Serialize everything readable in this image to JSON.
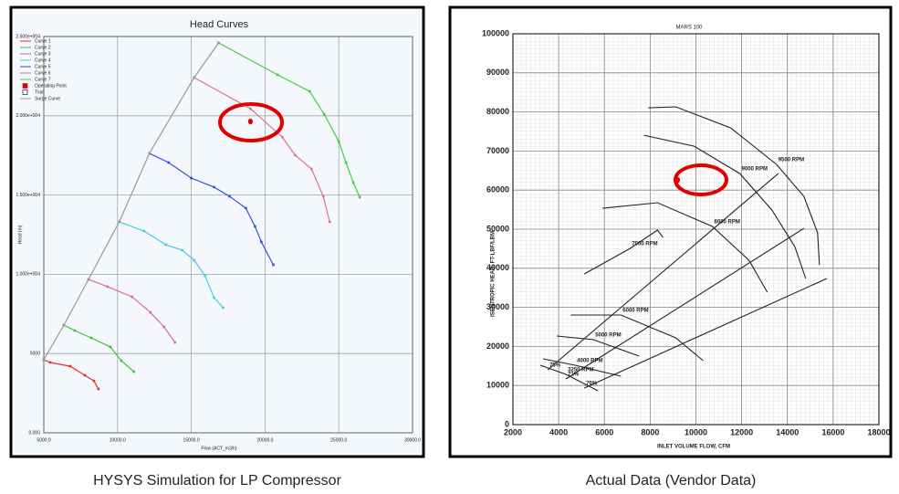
{
  "chart_data": [
    {
      "type": "line",
      "title": "Head Curves",
      "xlabel": "Flow (ACT_m3/h)",
      "ylabel": "Head (m)",
      "xlim": [
        5000,
        30000
      ],
      "ylim": [
        0,
        25000
      ],
      "grid": true,
      "markers": true,
      "legend": "top-left",
      "xticks": [
        {
          "value": 5000,
          "label": "5000.0"
        },
        {
          "value": 10000,
          "label": "10000.0"
        },
        {
          "value": 15000,
          "label": "15000.0"
        },
        {
          "value": 20000,
          "label": "20000.0"
        },
        {
          "value": 25000,
          "label": "25000.0"
        },
        {
          "value": 30000,
          "label": "30000.0"
        }
      ],
      "yticks": [
        {
          "value": 0,
          "label": "0.000"
        },
        {
          "value": 5000,
          "label": "5000"
        },
        {
          "value": 10000,
          "label": "1.000e+004"
        },
        {
          "value": 15000,
          "label": "1.500e+004"
        },
        {
          "value": 20000,
          "label": "2.000e+004"
        },
        {
          "value": 25000,
          "label": "2.500e+004"
        }
      ],
      "series": [
        {
          "name": "Curve 1",
          "color": "#e03030",
          "x": [
            5000,
            5430,
            6790,
            7780,
            8400,
            8700
          ],
          "values": [
            4610,
            4440,
            4200,
            3630,
            3280,
            2770
          ]
        },
        {
          "name": "Curve 2",
          "color": "#40c040",
          "x": [
            6360,
            7100,
            8210,
            9510,
            10250,
            11110
          ],
          "values": [
            6800,
            6450,
            5990,
            5420,
            4550,
            3860
          ]
        },
        {
          "name": "Curve 3",
          "color": "#e060b0",
          "x": [
            8030,
            9320,
            10990,
            12220,
            13150,
            13890
          ],
          "values": [
            9680,
            9220,
            8580,
            7600,
            6680,
            5700
          ]
        },
        {
          "name": "Curve 4",
          "color": "#40d0e0",
          "x": [
            10120,
            11790,
            13270,
            14380,
            15190,
            15930,
            16540,
            17160
          ],
          "values": [
            13310,
            12730,
            11870,
            11520,
            10890,
            9910,
            8530,
            7890
          ]
        },
        {
          "name": "Curve 5",
          "color": "#3050d0",
          "x": [
            12160,
            13460,
            15000,
            16540,
            17590,
            18700,
            19320,
            19750,
            20560
          ],
          "values": [
            17630,
            17050,
            16070,
            15500,
            14920,
            14170,
            13020,
            12040,
            10600
          ]
        },
        {
          "name": "Curve 6",
          "color": "#e07090",
          "x": [
            15190,
            19010,
            21170,
            22040,
            23150,
            23950,
            24380
          ],
          "values": [
            22410,
            20450,
            18660,
            17510,
            16650,
            14920,
            13310
          ]
        },
        {
          "name": "Curve 7",
          "color": "#40d040",
          "x": [
            16850,
            20860,
            23020,
            24010,
            25000,
            25490,
            25990,
            26420
          ],
          "values": [
            24600,
            22580,
            21540,
            20100,
            18380,
            17050,
            15780,
            14860
          ]
        },
        {
          "name": "Operating Point",
          "color": "#e00000",
          "x": [
            19010
          ],
          "values": [
            19640
          ]
        },
        {
          "name": "Trial",
          "color": "#000000",
          "x": [],
          "values": []
        },
        {
          "name": "Surge Curve",
          "color": "#999999",
          "x": [
            5000,
            6360,
            8030,
            10120,
            12160,
            15190,
            16850
          ],
          "values": [
            4610,
            6800,
            9680,
            13310,
            17630,
            22410,
            24600
          ]
        }
      ]
    },
    {
      "type": "line",
      "title": "MARS 100",
      "xlabel": "INLET VOLUME FLOW, CFM",
      "ylabel": "ISENTROPIC HEAD, FT-LBF/LBM",
      "xlim": [
        2000,
        18000
      ],
      "ylim": [
        0,
        100000
      ],
      "grid": true,
      "markers": false,
      "xticks": [
        2000,
        4000,
        6000,
        8000,
        10000,
        12000,
        14000,
        16000,
        18000
      ],
      "yticks": [
        0,
        10000,
        20000,
        30000,
        40000,
        50000,
        60000,
        70000,
        80000,
        90000,
        100000
      ],
      "series": [
        {
          "name": "9500 RPM",
          "color": "#222222",
          "x": [
            7920,
            9120,
            11520,
            13520,
            14720,
            15320,
            15400
          ],
          "values": [
            81060,
            81300,
            75920,
            66580,
            58400,
            49060,
            40880
          ]
        },
        {
          "name": "9000 RPM",
          "color": "#222222",
          "x": [
            7720,
            9920,
            11920,
            13320,
            14320,
            14800
          ],
          "values": [
            74050,
            71250,
            64240,
            54900,
            45550,
            37380
          ]
        },
        {
          "name": "8000 RPM",
          "color": "#222222",
          "x": [
            5920,
            8320,
            10720,
            12320,
            13120
          ],
          "values": [
            55360,
            56770,
            50690,
            42050,
            33870
          ]
        },
        {
          "name": "7000 RPM",
          "color": "#222222",
          "x": [
            5120,
            7120,
            8320,
            8560
          ],
          "values": [
            38540,
            45080,
            49760,
            47890
          ]
        },
        {
          "name": "6000 RPM",
          "color": "#222222",
          "x": [
            4520,
            6720,
            9120,
            10320
          ],
          "values": [
            28030,
            28030,
            22190,
            16350
          ]
        },
        {
          "name": "5000 RPM",
          "color": "#222222",
          "x": [
            3920,
            5520,
            7520
          ],
          "values": [
            22660,
            21720,
            17520
          ]
        },
        {
          "name": "4000 RPM",
          "color": "#222222",
          "x": [
            3320,
            4720,
            6720
          ],
          "values": [
            16820,
            15180,
            12380
          ]
        },
        {
          "name": "3250 RPM",
          "color": "#222222",
          "x": [
            3200,
            4320,
            5720
          ],
          "values": [
            15180,
            12850,
            8640
          ]
        },
        {
          "name": "75%",
          "color": "#222222",
          "x": [
            3520,
            13600
          ],
          "values": [
            14020,
            64240
          ]
        },
        {
          "name": "71%",
          "color": "#222222",
          "x": [
            4320,
            14720
          ],
          "values": [
            11680,
            50220
          ]
        },
        {
          "name": "70%",
          "color": "#222222",
          "x": [
            5120,
            15720
          ],
          "values": [
            9340,
            37380
          ]
        },
        {
          "name": "Operating Point",
          "color": "#e00000",
          "x": [
            9200
          ],
          "values": [
            62600
          ]
        }
      ]
    }
  ],
  "captions": [
    "HYSYS Simulation for LP Compressor",
    "Actual Data (Vendor Data)"
  ]
}
